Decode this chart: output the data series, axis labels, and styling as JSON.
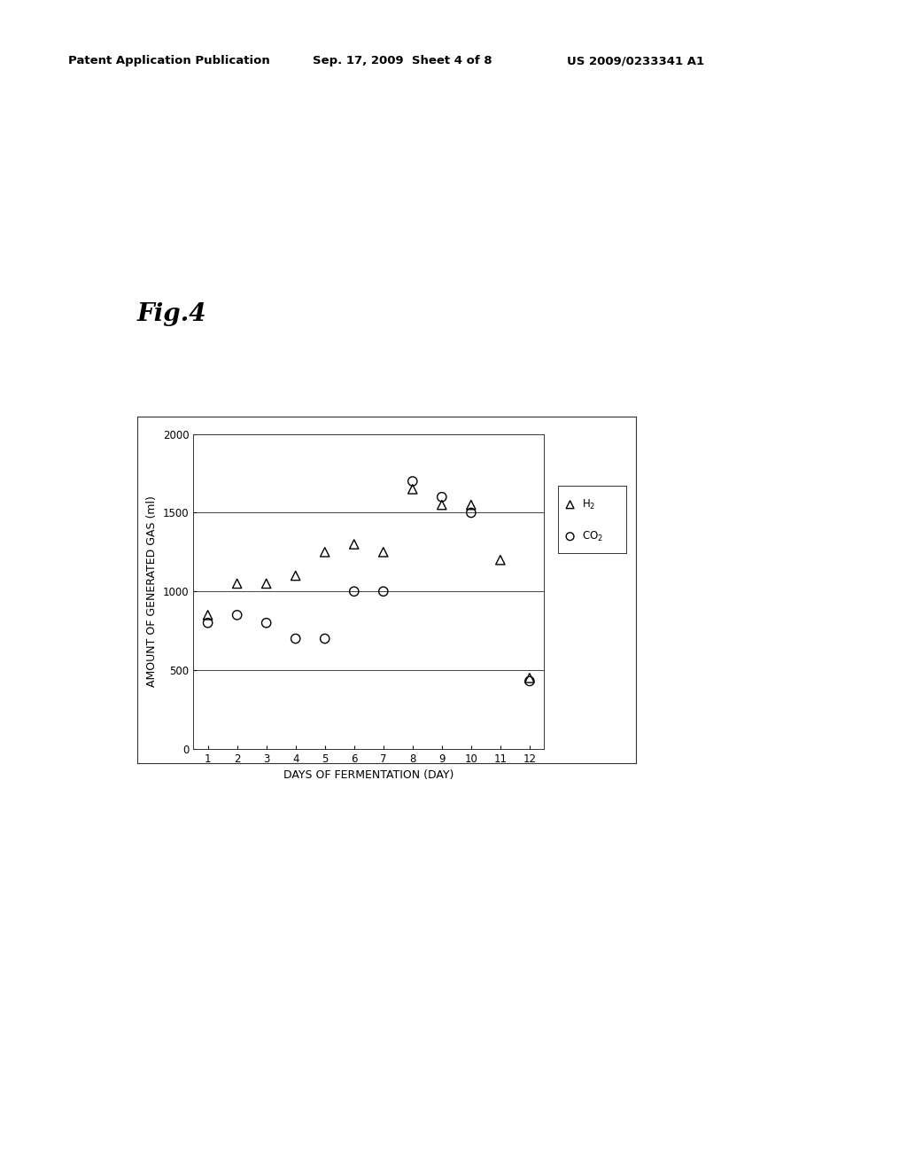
{
  "title": "Fig.4",
  "xlabel": "DAYS OF FERMENTATION (DAY)",
  "ylabel": "AMOUNT OF GENERATED GAS (ml)",
  "h2_x": [
    1,
    2,
    3,
    4,
    5,
    6,
    7,
    8,
    9,
    10,
    11,
    12
  ],
  "h2_y": [
    850,
    1050,
    1050,
    1100,
    1250,
    1300,
    1250,
    1650,
    1550,
    1550,
    1200,
    450
  ],
  "co2_x": [
    1,
    2,
    3,
    4,
    5,
    6,
    7,
    8,
    9,
    10,
    12
  ],
  "co2_y": [
    800,
    850,
    800,
    700,
    700,
    1000,
    1000,
    1700,
    1600,
    1500,
    430
  ],
  "ylim": [
    0,
    2000
  ],
  "xlim": [
    0.5,
    12.5
  ],
  "yticks": [
    0,
    500,
    1000,
    1500,
    2000
  ],
  "xticks": [
    1,
    2,
    3,
    4,
    5,
    6,
    7,
    8,
    9,
    10,
    11,
    12
  ],
  "header_left": "Patent Application Publication",
  "header_mid": "Sep. 17, 2009  Sheet 4 of 8",
  "header_right": "US 2009/0233341 A1",
  "bg_color": "#ffffff",
  "marker_color": "#000000"
}
